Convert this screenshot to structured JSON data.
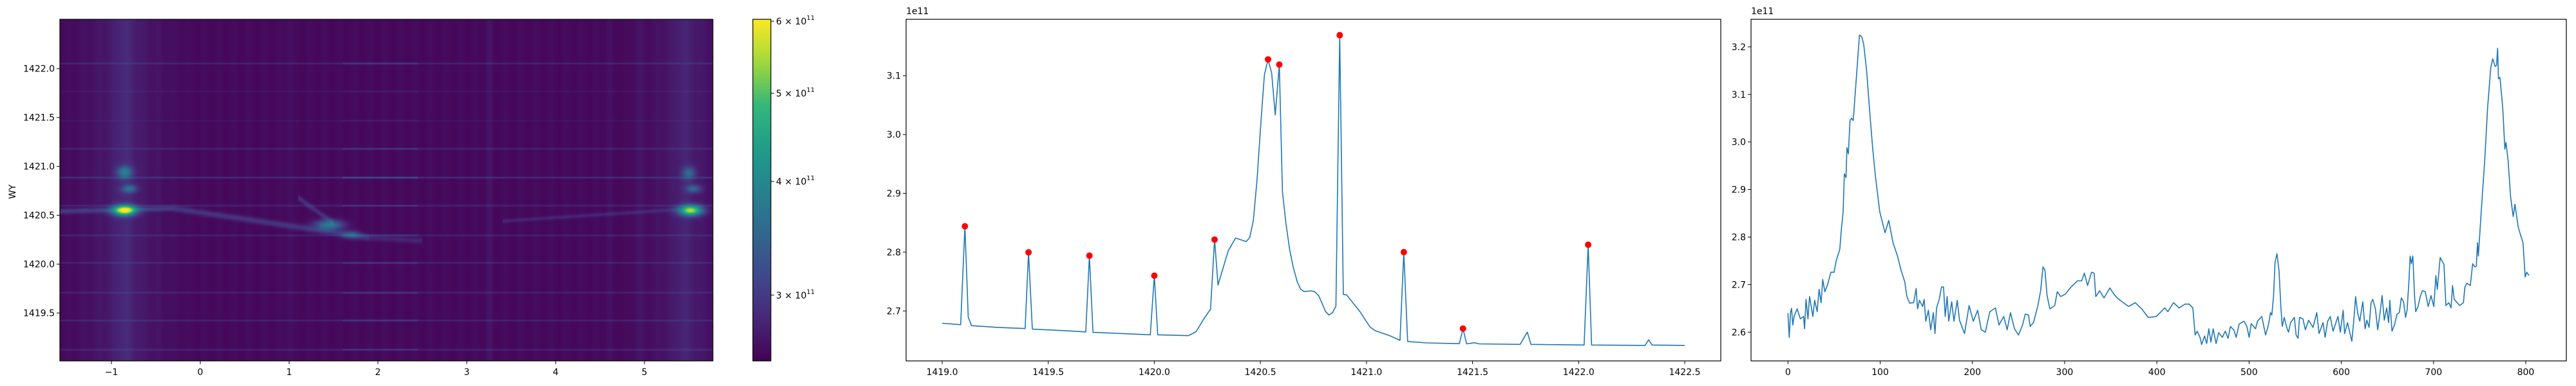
{
  "chart_data": [
    {
      "type": "heatmap",
      "ylabel": "WY",
      "xlim": [
        -1.58,
        5.77
      ],
      "ylim": [
        1419.01,
        1422.505
      ],
      "xticks": [
        {
          "value": -1,
          "label": "−1"
        },
        {
          "value": 0,
          "label": "0"
        },
        {
          "value": 1,
          "label": "1"
        },
        {
          "value": 2,
          "label": "2"
        },
        {
          "value": 3,
          "label": "3"
        },
        {
          "value": 4,
          "label": "4"
        },
        {
          "value": 5,
          "label": "5"
        }
      ],
      "yticks": [
        {
          "value": 1419.5,
          "label": "1419.5"
        },
        {
          "value": 1420.0,
          "label": "1420.0"
        },
        {
          "value": 1420.5,
          "label": "1420.5"
        },
        {
          "value": 1421.0,
          "label": "1421.0"
        },
        {
          "value": 1421.5,
          "label": "1421.5"
        },
        {
          "value": 1422.0,
          "label": "1422.0"
        }
      ],
      "colormap": "viridis",
      "colorbar": {
        "scale": "log",
        "clim": [
          254000000000.0,
          603000000000.0
        ],
        "ticks": [
          {
            "value": 600000000000.0,
            "mantissa": "6",
            "exponent": "11"
          },
          {
            "value": 500000000000.0,
            "mantissa": "5",
            "exponent": "11"
          },
          {
            "value": 400000000000.0,
            "mantissa": "4",
            "exponent": "11"
          },
          {
            "value": 300000000000.0,
            "mantissa": "3",
            "exponent": "11"
          }
        ]
      }
    },
    {
      "type": "line",
      "offset_text": "1e11",
      "xlim": [
        1418.83,
        1422.67
      ],
      "ylim": [
        2.615,
        3.196
      ],
      "grid": false,
      "xticks": [
        {
          "value": 1419.0,
          "label": "1419.0"
        },
        {
          "value": 1419.5,
          "label": "1419.5"
        },
        {
          "value": 1420.0,
          "label": "1420.0"
        },
        {
          "value": 1420.5,
          "label": "1420.5"
        },
        {
          "value": 1421.0,
          "label": "1421.0"
        },
        {
          "value": 1421.5,
          "label": "1421.5"
        },
        {
          "value": 1422.0,
          "label": "1422.0"
        },
        {
          "value": 1422.5,
          "label": "1422.5"
        }
      ],
      "yticks": [
        {
          "value": 2.7,
          "label": "2.7"
        },
        {
          "value": 2.8,
          "label": "2.8"
        },
        {
          "value": 2.9,
          "label": "2.9"
        },
        {
          "value": 3.0,
          "label": "3.0"
        },
        {
          "value": 3.1,
          "label": "3.1"
        }
      ],
      "series": [
        {
          "color": "#1f77b4",
          "x": [
            1419.0,
            1419.087,
            1419.107,
            1419.123,
            1419.138,
            1419.261,
            1419.391,
            1419.407,
            1419.425,
            1419.602,
            1419.677,
            1419.694,
            1419.711,
            1419.981,
            1420.0,
            1420.016,
            1420.161,
            1420.197,
            1420.231,
            1420.265,
            1420.284,
            1420.3,
            1420.348,
            1420.383,
            1420.433,
            1420.45,
            1420.467,
            1420.484,
            1420.503,
            1420.519,
            1420.536,
            1420.553,
            1420.57,
            1420.589,
            1420.604,
            1420.62,
            1420.638,
            1420.655,
            1420.674,
            1420.69,
            1420.705,
            1420.738,
            1420.755,
            1420.775,
            1420.807,
            1420.823,
            1420.84,
            1420.856,
            1420.874,
            1420.891,
            1420.907,
            1420.969,
            1421.016,
            1421.04,
            1421.109,
            1421.158,
            1421.176,
            1421.194,
            1421.283,
            1421.438,
            1421.455,
            1421.472,
            1421.508,
            1421.531,
            1421.724,
            1421.758,
            1421.775,
            1422.026,
            1422.045,
            1422.061,
            1422.313,
            1422.33,
            1422.346,
            1422.5
          ],
          "y": [
            2.679,
            2.6766,
            2.844,
            2.6895,
            2.675,
            2.672,
            2.67,
            2.7996,
            2.669,
            2.666,
            2.6644,
            2.794,
            2.6636,
            2.6594,
            2.76,
            2.6594,
            2.658,
            2.6648,
            2.685,
            2.703,
            2.8214,
            2.744,
            2.802,
            2.824,
            2.818,
            2.825,
            2.855,
            2.923,
            3.0236,
            3.1018,
            3.1278,
            3.105,
            3.0333,
            3.119,
            2.902,
            2.85,
            2.804,
            2.774,
            2.749,
            2.737,
            2.733,
            2.734,
            2.733,
            2.726,
            2.699,
            2.693,
            2.697,
            2.708,
            3.169,
            2.728,
            2.727,
            2.699,
            2.673,
            2.6665,
            2.658,
            2.65,
            2.8,
            2.648,
            2.6456,
            2.6443,
            2.67,
            2.644,
            2.646,
            2.644,
            2.6431,
            2.664,
            2.6431,
            2.642,
            2.8126,
            2.642,
            2.6414,
            2.651,
            2.642,
            2.6414
          ]
        }
      ],
      "peaks": {
        "color": "#ff0000",
        "x": [
          1419.107,
          1419.407,
          1419.694,
          1420.0,
          1420.284,
          1420.536,
          1420.589,
          1420.874,
          1421.176,
          1421.455,
          1422.045
        ],
        "y": [
          2.844,
          2.7996,
          2.794,
          2.76,
          2.8214,
          3.1278,
          3.119,
          3.169,
          2.8,
          2.67,
          2.8126
        ]
      }
    },
    {
      "type": "line",
      "offset_text": "1e11",
      "xlim": [
        -40,
        844
      ],
      "ylim": [
        2.5395,
        3.258
      ],
      "grid": false,
      "xticks": [
        {
          "value": 0,
          "label": "0"
        },
        {
          "value": 100,
          "label": "100"
        },
        {
          "value": 200,
          "label": "200"
        },
        {
          "value": 300,
          "label": "300"
        },
        {
          "value": 400,
          "label": "400"
        },
        {
          "value": 500,
          "label": "500"
        },
        {
          "value": 600,
          "label": "600"
        },
        {
          "value": 700,
          "label": "700"
        },
        {
          "value": 800,
          "label": "800"
        }
      ],
      "yticks": [
        {
          "value": 2.6,
          "label": "2.6"
        },
        {
          "value": 2.7,
          "label": "2.7"
        },
        {
          "value": 2.8,
          "label": "2.8"
        },
        {
          "value": 2.9,
          "label": "2.9"
        },
        {
          "value": 3.0,
          "label": "3.0"
        },
        {
          "value": 3.1,
          "label": "3.1"
        },
        {
          "value": 3.2,
          "label": "3.2"
        }
      ],
      "series": [
        {
          "color": "#1f77b4",
          "x": [
            0,
            1.4,
            2.8,
            3.9,
            5.3,
            6.8,
            10,
            13.5,
            17,
            18,
            19.6,
            21.7,
            23.5,
            27,
            29,
            31.7,
            33.8,
            36,
            37.7,
            40,
            43,
            46.6,
            50,
            52.3,
            56.2,
            58,
            59.8,
            61.2,
            63,
            64,
            65.5,
            67.3,
            69,
            70.8,
            74.4,
            77.6,
            80,
            82.2,
            85.4,
            88.6,
            91.8,
            94.7,
            99.6,
            105.3,
            109.3,
            114,
            118.5,
            122.8,
            126.7,
            129,
            132,
            136.3,
            139,
            140.6,
            142.7,
            146,
            147.7,
            149.5,
            152.3,
            154.8,
            157.7,
            159.4,
            161.2,
            164,
            166.5,
            168.7,
            170.5,
            172.6,
            174.4,
            177.6,
            180,
            183.6,
            186,
            191.5,
            196.4,
            201,
            205.7,
            209.6,
            214,
            218.9,
            225,
            228.8,
            234,
            237.7,
            241.3,
            245.6,
            250,
            254.4,
            257.3,
            260.9,
            262.6,
            266.2,
            270.8,
            274,
            276.5,
            278.6,
            281,
            284,
            289.3,
            292,
            295.7,
            300.7,
            307,
            314,
            318.5,
            321.4,
            324.9,
            329.2,
            332,
            333.8,
            338,
            342.7,
            349,
            353.4,
            357,
            362.3,
            369.4,
            376.5,
            383.6,
            390.7,
            399.6,
            408.5,
            412,
            418,
            424.3,
            430.6,
            435.2,
            439,
            441.5,
            443.7,
            446.8,
            448.6,
            451.8,
            454,
            456.4,
            458.6,
            461.1,
            464.2,
            467,
            471,
            474.2,
            477.3,
            479.8,
            483.6,
            486,
            489.2,
            494.5,
            497.6,
            500.1,
            502.3,
            507,
            509.1,
            513.8,
            517.9,
            521,
            523.2,
            524.7,
            526.6,
            528.2,
            530.3,
            532.5,
            534.4,
            536,
            538.1,
            541.3,
            542.8,
            545,
            549.1,
            551,
            553.1,
            554.7,
            558.4,
            561,
            564.6,
            569.3,
            573.4,
            575.9,
            580.2,
            582.4,
            585.2,
            588,
            591.1,
            596.4,
            598.9,
            602,
            603.6,
            606.7,
            611.4,
            613.6,
            615.5,
            617.6,
            620.1,
            623.3,
            625.8,
            627.7,
            630.1,
            632.3,
            634.2,
            637,
            639.5,
            642,
            644.2,
            646.6,
            649.2,
            651.3,
            652.6,
            655,
            657.6,
            660.4,
            662.9,
            665.1,
            667.5,
            669.7,
            671.3,
            673.2,
            674.7,
            676,
            677.5,
            679.4,
            680.7,
            683.2,
            685.6,
            687.9,
            691,
            694.2,
            697.3,
            700.3,
            702.5,
            704.1,
            707.2,
            711.3,
            713.4,
            716.6,
            719,
            720.6,
            722.4,
            728.3,
            732.4,
            734,
            736.1,
            739.9,
            742.4,
            744.9,
            746.4,
            747.7,
            748.6,
            751.7,
            755.5,
            758.6,
            762,
            764.2,
            766.7,
            768.3,
            769.5,
            770.4,
            772,
            775.1,
            777.3,
            778.6,
            780.8,
            783.6,
            786.4,
            788.3,
            791.7,
            793.9,
            797,
            799.4,
            801,
            803.5
          ],
          "y": [
            2.64,
            2.589,
            2.641,
            2.65,
            2.615,
            2.634,
            2.649,
            2.628,
            2.633,
            2.607,
            2.669,
            2.628,
            2.675,
            2.633,
            2.667,
            2.643,
            2.69,
            2.662,
            2.711,
            2.685,
            2.7,
            2.726,
            2.726,
            2.75,
            2.774,
            2.817,
            2.851,
            2.933,
            2.925,
            2.988,
            2.975,
            3.045,
            3.05,
            3.045,
            3.14,
            3.225,
            3.221,
            3.205,
            3.148,
            3.065,
            2.988,
            2.931,
            2.853,
            2.809,
            2.835,
            2.788,
            2.762,
            2.729,
            2.706,
            2.675,
            2.661,
            2.662,
            2.692,
            2.649,
            2.667,
            2.654,
            2.669,
            2.623,
            2.646,
            2.605,
            2.641,
            2.597,
            2.651,
            2.669,
            2.695,
            2.695,
            2.633,
            2.675,
            2.623,
            2.664,
            2.623,
            2.667,
            2.625,
            2.597,
            2.656,
            2.623,
            2.646,
            2.605,
            2.6,
            2.643,
            2.651,
            2.615,
            2.633,
            2.605,
            2.641,
            2.607,
            2.594,
            2.615,
            2.638,
            2.636,
            2.612,
            2.62,
            2.654,
            2.687,
            2.737,
            2.731,
            2.677,
            2.649,
            2.656,
            2.685,
            2.675,
            2.68,
            2.695,
            2.708,
            2.708,
            2.724,
            2.698,
            2.726,
            2.724,
            2.675,
            2.687,
            2.672,
            2.693,
            2.68,
            2.672,
            2.664,
            2.654,
            2.662,
            2.649,
            2.631,
            2.633,
            2.651,
            2.643,
            2.662,
            2.651,
            2.659,
            2.659,
            2.651,
            2.594,
            2.602,
            2.589,
            2.574,
            2.592,
            2.576,
            2.607,
            2.579,
            2.607,
            2.576,
            2.599,
            2.589,
            2.602,
            2.587,
            2.612,
            2.604,
            2.589,
            2.617,
            2.623,
            2.612,
            2.589,
            2.618,
            2.607,
            2.623,
            2.633,
            2.594,
            2.615,
            2.641,
            2.636,
            2.677,
            2.747,
            2.765,
            2.729,
            2.656,
            2.612,
            2.631,
            2.607,
            2.6,
            2.62,
            2.631,
            2.594,
            2.587,
            2.631,
            2.628,
            2.605,
            2.625,
            2.61,
            2.641,
            2.597,
            2.62,
            2.589,
            2.623,
            2.633,
            2.602,
            2.633,
            2.6,
            2.646,
            2.597,
            2.62,
            2.581,
            2.625,
            2.675,
            2.641,
            2.623,
            2.664,
            2.607,
            2.625,
            2.61,
            2.662,
            2.669,
            2.649,
            2.605,
            2.641,
            2.677,
            2.625,
            2.651,
            2.62,
            2.667,
            2.602,
            2.615,
            2.638,
            2.641,
            2.672,
            2.664,
            2.631,
            2.646,
            2.703,
            2.76,
            2.744,
            2.76,
            2.677,
            2.643,
            2.654,
            2.675,
            2.687,
            2.685,
            2.654,
            2.677,
            2.654,
            2.719,
            2.69,
            2.757,
            2.742,
            2.656,
            2.662,
            2.651,
            2.698,
            2.669,
            2.656,
            2.662,
            2.695,
            2.703,
            2.698,
            2.744,
            2.737,
            2.739,
            2.788,
            2.76,
            2.853,
            2.962,
            3.071,
            3.156,
            3.175,
            3.159,
            3.161,
            3.197,
            3.133,
            3.136,
            3.071,
            2.985,
            2.999,
            2.962,
            2.884,
            2.843,
            2.869,
            2.822,
            2.807,
            2.788,
            2.716,
            2.726,
            2.719
          ]
        }
      ]
    }
  ]
}
